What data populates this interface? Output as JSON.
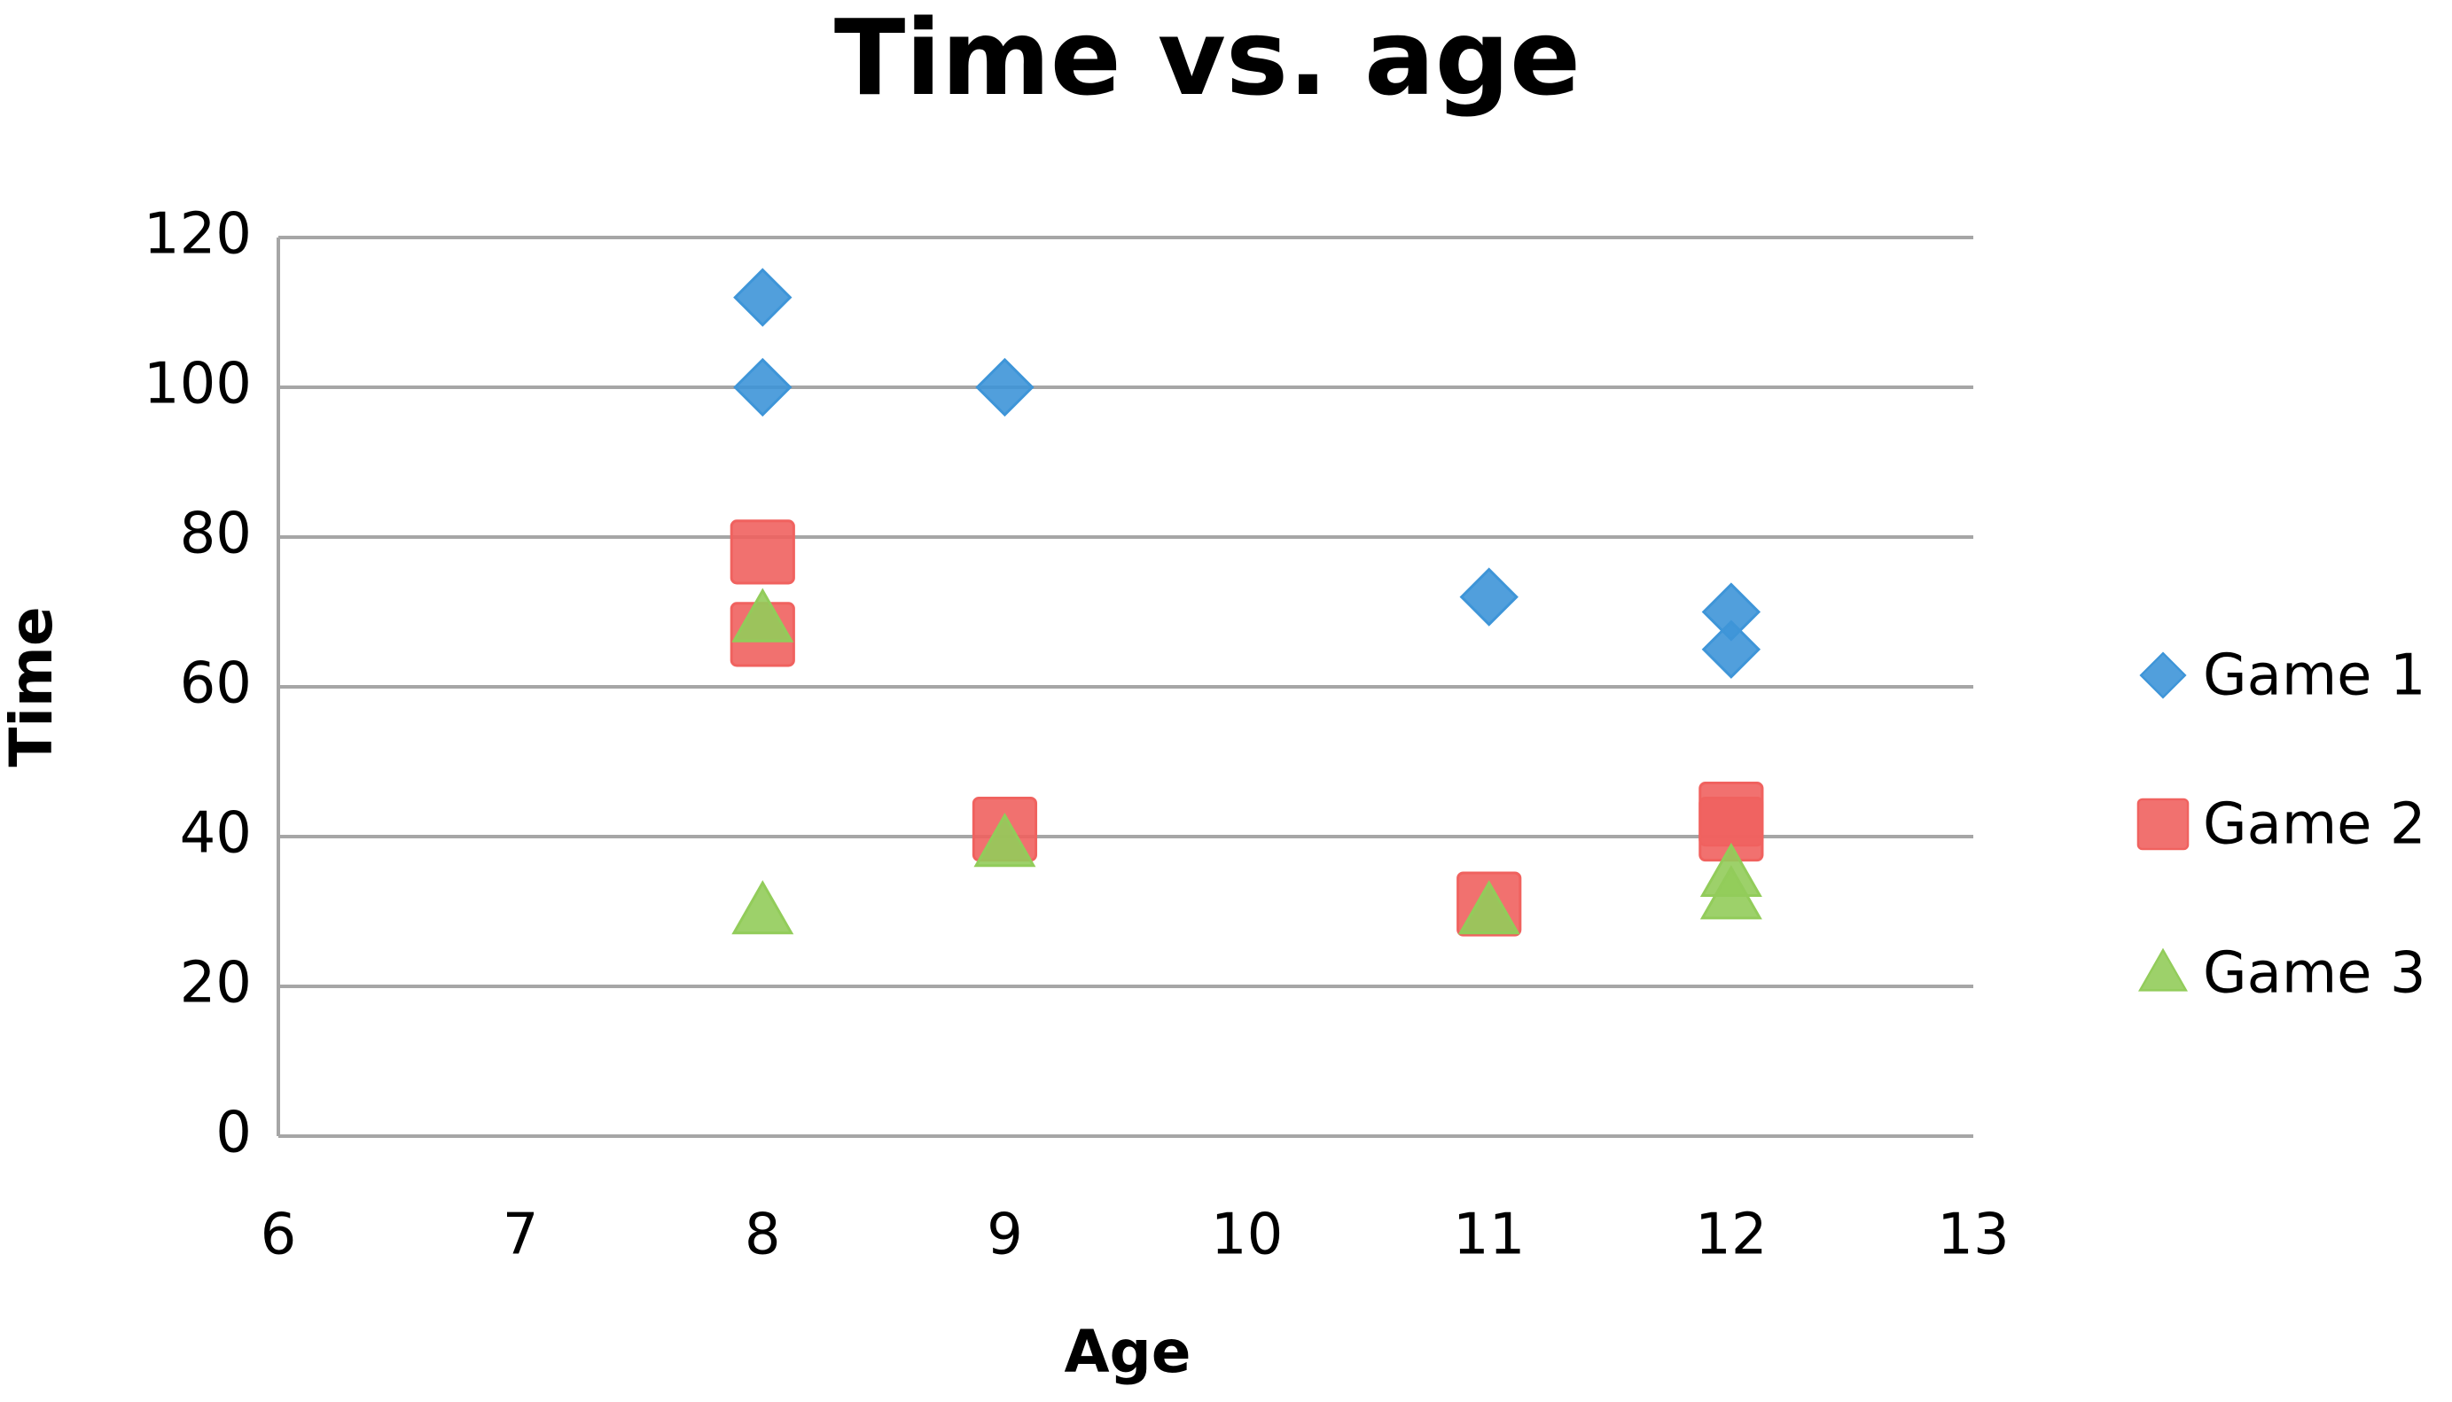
{
  "chart_data": {
    "type": "scatter",
    "title": "Time vs. age",
    "x_label": "Age",
    "y_label": "Time",
    "xlim": [
      6,
      13
    ],
    "xticks": [
      6,
      7,
      8,
      9,
      10,
      11,
      12,
      13
    ],
    "ylim": [
      0,
      120
    ],
    "yticks": [
      0,
      20,
      40,
      60,
      80,
      100,
      120
    ],
    "grid": true,
    "legend": "right",
    "series": [
      {
        "name": "Game 1",
        "color": "#3e95d8",
        "marker": "diamond",
        "x": [
          8,
          8,
          9,
          11,
          12,
          12
        ],
        "values": [
          112,
          100,
          100,
          72,
          70,
          65
        ]
      },
      {
        "name": "Game 2",
        "color": "#f0625f",
        "marker": "square",
        "x": [
          8,
          8,
          9,
          11,
          12,
          12
        ],
        "values": [
          78,
          67,
          41,
          31,
          43,
          41
        ]
      },
      {
        "name": "Game 3",
        "color": "#92cc5a",
        "marker": "triangle",
        "x": [
          8,
          8,
          9,
          11,
          12,
          12
        ],
        "values": [
          69,
          30,
          39,
          30,
          35,
          32
        ]
      }
    ]
  }
}
